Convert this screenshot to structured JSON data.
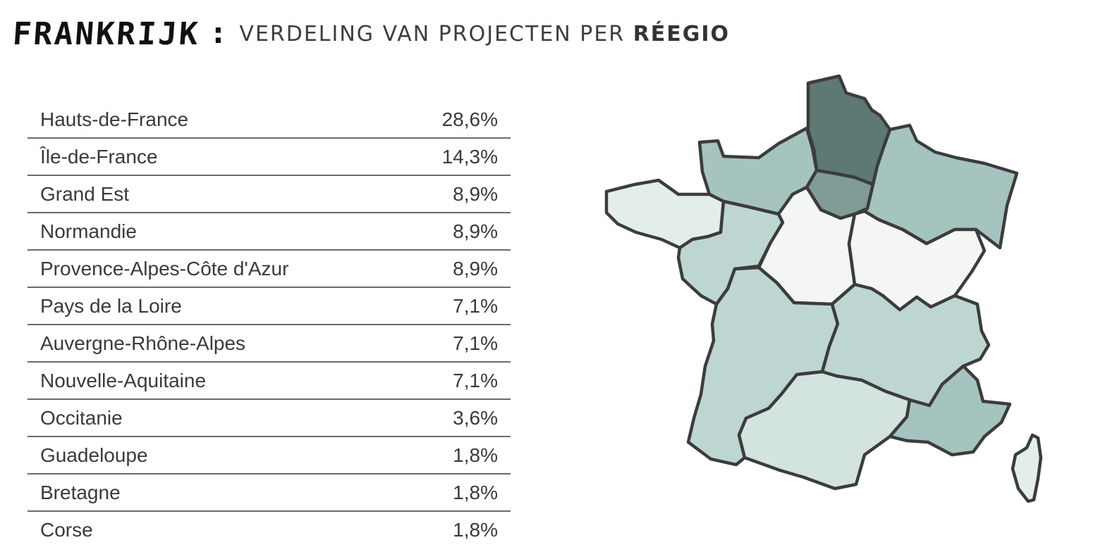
{
  "header": {
    "brand": "FRANKRIJK",
    "colon": ":",
    "subtitle_prefix": "VERDELING VAN PROJECTEN PER ",
    "subtitle_bold": "RÉEGIO"
  },
  "regions": [
    {
      "name": "Hauts-de-France",
      "value": "28,6%",
      "share": 28.6,
      "fill": "#5e7873"
    },
    {
      "name": "Île-de-France",
      "value": "14,3%",
      "share": 14.3,
      "fill": "#7f9c97"
    },
    {
      "name": "Grand Est",
      "value": "8,9%",
      "share": 8.9,
      "fill": "#a5c4bf"
    },
    {
      "name": "Normandie",
      "value": "8,9%",
      "share": 8.9,
      "fill": "#a5c4bf"
    },
    {
      "name": "Provence-Alpes-Côte d'Azur",
      "value": "8,9%",
      "share": 8.9,
      "fill": "#a5c4bf"
    },
    {
      "name": "Pays de la Loire",
      "value": "7,1%",
      "share": 7.1,
      "fill": "#bed6d2"
    },
    {
      "name": "Auvergne-Rhône-Alpes",
      "value": "7,1%",
      "share": 7.1,
      "fill": "#bed6d2"
    },
    {
      "name": "Nouvelle-Aquitaine",
      "value": "7,1%",
      "share": 7.1,
      "fill": "#bed6d2"
    },
    {
      "name": "Occitanie",
      "value": "3,6%",
      "share": 3.6,
      "fill": "#d2e3e0"
    },
    {
      "name": "Guadeloupe",
      "value": "1,8%",
      "share": 1.8,
      "fill": "#e3eeec"
    },
    {
      "name": "Bretagne",
      "value": "1,8%",
      "share": 1.8,
      "fill": "#e3eeec"
    },
    {
      "name": "Corse",
      "value": "1,8%",
      "share": 1.8,
      "fill": "#e3eeec"
    }
  ],
  "map_other_fill": "#f3f6f5"
}
